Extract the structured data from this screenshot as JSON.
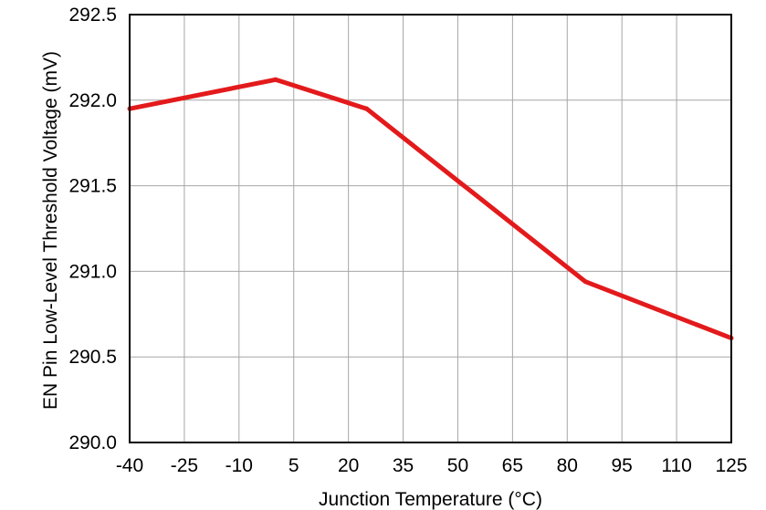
{
  "chart_data": {
    "type": "line",
    "title": "",
    "xlabel": "Junction Temperature (°C)",
    "ylabel": "EN Pin Low-Level Threshold Voltage (mV)",
    "xlim": [
      -40,
      125
    ],
    "ylim": [
      290.0,
      292.5
    ],
    "xticks": [
      "-40",
      "-25",
      "-10",
      "5",
      "20",
      "35",
      "50",
      "65",
      "80",
      "95",
      "110",
      "125"
    ],
    "yticks": [
      "290.0",
      "290.5",
      "291.0",
      "291.5",
      "292.0",
      "292.5"
    ],
    "grid": true,
    "legend": "none",
    "series": [
      {
        "color": "#e31a1c",
        "x": [
          -40,
          0,
          25,
          85,
          125
        ],
        "y": [
          291.95,
          292.12,
          291.95,
          290.94,
          290.61
        ]
      }
    ]
  }
}
